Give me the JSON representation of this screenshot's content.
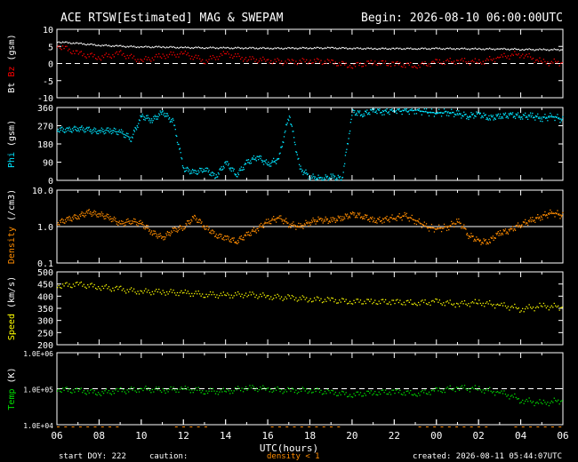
{
  "header": {
    "title": "ACE RTSW[Estimated] MAG & SWEPAM",
    "begin": "Begin: 2026-08-10 06:00:00UTC"
  },
  "footer": {
    "start_doy": "start DOY: 222",
    "caution": "caution:",
    "density_note": "density < 1",
    "created": "created: 2026-08-11 05:44:07UTC"
  },
  "colors": {
    "bt": "#ffffff",
    "bz": "#ff0000",
    "phi": "#00e5ff",
    "density": "#ff8c00",
    "speed": "#ffff00",
    "temp": "#00e000"
  },
  "chart_data": {
    "type": "scatter",
    "xlabel": "UTC(hours)",
    "x_ticks": [
      "06",
      "08",
      "10",
      "12",
      "14",
      "16",
      "18",
      "20",
      "22",
      "00",
      "02",
      "04",
      "06"
    ],
    "x_range_hours": [
      0,
      24
    ],
    "panels": [
      {
        "id": "mag",
        "ylabel_parts": [
          "Bt",
          "Bz",
          "(gsm)"
        ],
        "ylim": [
          -10,
          10
        ],
        "yticks": [
          "10",
          "5",
          "0",
          "-5",
          "-10"
        ],
        "reference_line": 0,
        "series": [
          {
            "name": "Bt",
            "color_key": "bt",
            "x": [
              0,
              1,
              2,
              3,
              4,
              5,
              6,
              7,
              8,
              9,
              10,
              11,
              12,
              13,
              14,
              15,
              16,
              17,
              18,
              19,
              20,
              21,
              22,
              23,
              24
            ],
            "y": [
              6.5,
              6,
              5.5,
              5.2,
              5,
              5,
              4.8,
              4.8,
              4.7,
              4.7,
              4.6,
              4.6,
              4.7,
              4.7,
              4.6,
              4.5,
              4.5,
              4.5,
              4.5,
              4.5,
              4.4,
              4.4,
              4.3,
              4.2,
              4.2
            ]
          },
          {
            "name": "Bz",
            "color_key": "bz",
            "x": [
              0,
              1,
              2,
              3,
              4,
              5,
              6,
              7,
              8,
              9,
              10,
              11,
              12,
              13,
              14,
              15,
              16,
              17,
              18,
              19,
              20,
              21,
              22,
              23,
              24
            ],
            "y": [
              5.5,
              3,
              2,
              3,
              1,
              2.5,
              3,
              1,
              3,
              1.5,
              1,
              0.5,
              1,
              0.5,
              -0.5,
              0.5,
              0,
              -0.5,
              0.5,
              1,
              0.5,
              2,
              3,
              0.5,
              0.5
            ]
          }
        ]
      },
      {
        "id": "phi",
        "ylabel_parts": [
          "Phi",
          "(gsm)"
        ],
        "ylim": [
          0,
          360
        ],
        "yticks": [
          "360",
          "270",
          "180",
          "90",
          "0"
        ],
        "series": [
          {
            "name": "Phi",
            "color_key": "phi",
            "x": [
              0,
              0.5,
              1,
              1.5,
              2,
              2.5,
              3,
              3.5,
              4,
              4.5,
              5,
              5.5,
              6,
              6.5,
              7,
              7.5,
              8,
              8.5,
              9,
              9.5,
              10,
              10.5,
              11,
              11.5,
              12,
              12.5,
              13,
              13.5,
              14,
              14.5,
              15,
              15.5,
              16,
              16.5,
              17,
              17.5,
              18,
              18.5,
              19,
              19.5,
              20,
              20.5,
              21,
              21.5,
              22,
              22.5,
              23,
              23.5,
              24
            ],
            "y": [
              255,
              250,
              260,
              250,
              245,
              250,
              240,
              210,
              320,
              300,
              340,
              290,
              60,
              40,
              60,
              20,
              90,
              30,
              90,
              120,
              80,
              110,
              330,
              60,
              20,
              10,
              20,
              10,
              340,
              330,
              350,
              340,
              350,
              345,
              350,
              340,
              335,
              340,
              330,
              320,
              330,
              310,
              320,
              325,
              320,
              320,
              310,
              320,
              300
            ]
          }
        ]
      },
      {
        "id": "density",
        "ylabel_parts": [
          "Density",
          "(/cm3)"
        ],
        "ylim": [
          0.1,
          10
        ],
        "scale": "log",
        "yticks": [
          "10.0",
          "1.0",
          "0.1"
        ],
        "reference_line": 1.0,
        "series": [
          {
            "name": "Density",
            "color_key": "density",
            "x": [
              0,
              0.5,
              1,
              1.5,
              2,
              2.5,
              3,
              3.5,
              4,
              4.5,
              5,
              5.5,
              6,
              6.5,
              7,
              7.5,
              8,
              8.5,
              9,
              9.5,
              10,
              10.5,
              11,
              11.5,
              12,
              12.5,
              13,
              13.5,
              14,
              14.5,
              15,
              15.5,
              16,
              16.5,
              17,
              17.5,
              18,
              18.5,
              19,
              19.5,
              20,
              20.5,
              21,
              21.5,
              22,
              22.5,
              23,
              23.5,
              24
            ],
            "y": [
              1.3,
              1.6,
              2,
              2.5,
              2.2,
              1.8,
              1.2,
              1.5,
              1.2,
              0.7,
              0.5,
              0.8,
              1,
              1.8,
              1,
              0.6,
              0.5,
              0.4,
              0.6,
              0.9,
              1.4,
              1.8,
              1.2,
              1,
              1.4,
              1.6,
              1.5,
              1.8,
              2.2,
              2,
              1.5,
              1.6,
              1.8,
              2,
              1.5,
              1,
              0.9,
              1,
              1.4,
              0.6,
              0.4,
              0.4,
              0.7,
              0.8,
              1.2,
              1.5,
              2,
              2.5,
              2
            ]
          }
        ]
      },
      {
        "id": "speed",
        "ylabel_parts": [
          "Speed",
          "(km/s)"
        ],
        "ylim": [
          200,
          500
        ],
        "yticks": [
          "500",
          "450",
          "400",
          "350",
          "300",
          "250",
          "200"
        ],
        "series": [
          {
            "name": "Speed",
            "color_key": "speed",
            "x": [
              0,
              1,
              2,
              3,
              4,
              5,
              6,
              7,
              8,
              9,
              10,
              11,
              12,
              13,
              14,
              15,
              16,
              17,
              18,
              19,
              20,
              21,
              22,
              23,
              24
            ],
            "y": [
              445,
              450,
              440,
              430,
              420,
              420,
              415,
              410,
              405,
              410,
              400,
              395,
              390,
              385,
              380,
              380,
              378,
              375,
              378,
              370,
              375,
              365,
              350,
              360,
              358
            ]
          }
        ]
      },
      {
        "id": "temp",
        "ylabel_parts": [
          "Temp",
          "(K)"
        ],
        "ylim": [
          10000,
          1000000
        ],
        "scale": "log",
        "yticks": [
          "1.0E+06",
          "1.0E+05",
          "1.0E+04"
        ],
        "reference_line": 100000,
        "series": [
          {
            "name": "Temp",
            "color_key": "temp",
            "x": [
              0,
              1,
              2,
              3,
              4,
              5,
              6,
              7,
              8,
              9,
              10,
              11,
              12,
              13,
              14,
              15,
              16,
              17,
              18,
              19,
              20,
              21,
              22,
              23,
              24
            ],
            "y": [
              100000,
              90000,
              80000,
              90000,
              100000,
              95000,
              100000,
              90000,
              85000,
              110000,
              100000,
              90000,
              95000,
              80000,
              70000,
              80000,
              85000,
              75000,
              90000,
              110000,
              100000,
              80000,
              50000,
              40000,
              50000
            ]
          }
        ]
      }
    ]
  }
}
